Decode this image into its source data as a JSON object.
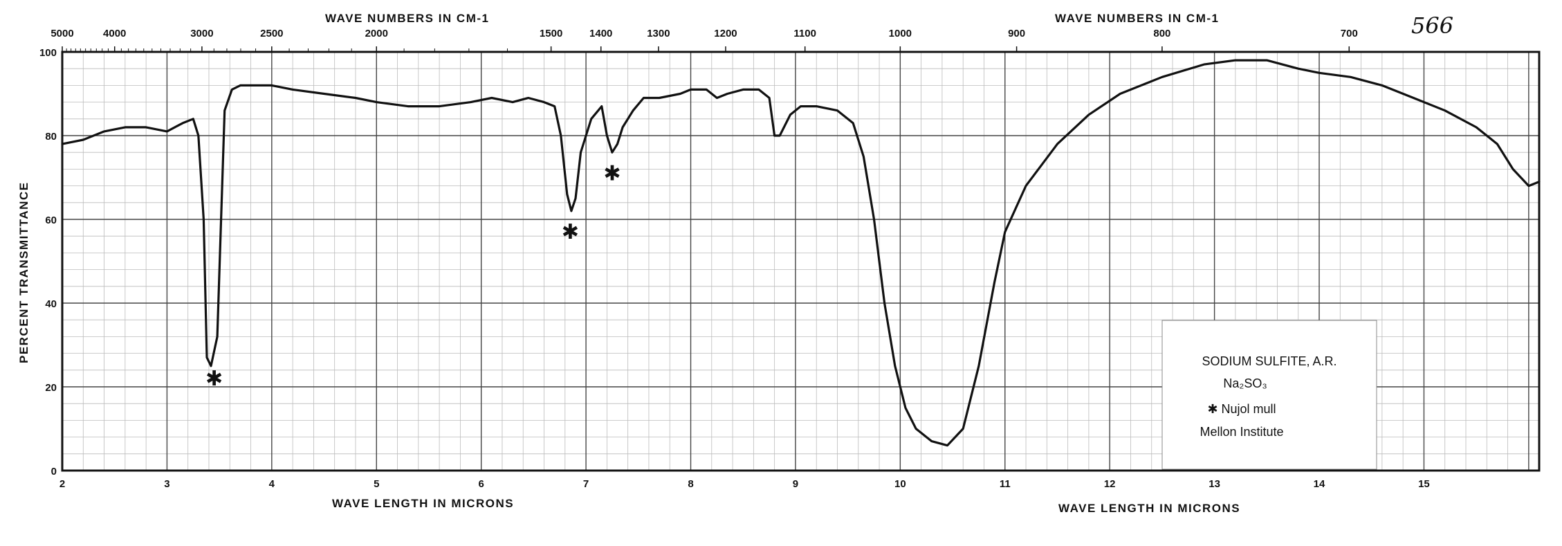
{
  "page_number": "566",
  "top_axis_title_left": "WAVE NUMBERS IN CM-1",
  "top_axis_title_right": "WAVE NUMBERS IN CM-1",
  "bottom_axis_title_left": "WAVE LENGTH IN MICRONS",
  "bottom_axis_title_right": "WAVE LENGTH IN MICRONS",
  "y_axis_title": "PERCENT TRANSMITTANCE",
  "y_ticks": [
    "0",
    "20",
    "40",
    "60",
    "80",
    "100"
  ],
  "x_ticks": [
    "2",
    "3",
    "4",
    "5",
    "6",
    "7",
    "8",
    "9",
    "10",
    "11",
    "12",
    "13",
    "14",
    "15"
  ],
  "top_ticks": [
    "5000",
    "4000",
    "3000",
    "2500",
    "2000",
    "1500",
    "1400",
    "1300",
    "1200",
    "1100",
    "1000",
    "900",
    "800",
    "700"
  ],
  "legend": {
    "compound": "SODIUM SULFITE, A.R.",
    "formula": "Na₂SO₃",
    "note": "✱ Nujol mull",
    "source": "Mellon Institute"
  },
  "chart_data": {
    "type": "line",
    "xlabel": "WAVE LENGTH IN MICRONS",
    "ylabel": "PERCENT TRANSMITTANCE",
    "x2label": "WAVE NUMBERS IN CM-1",
    "xlim": [
      2,
      16.1
    ],
    "ylim": [
      0,
      100
    ],
    "grid": true,
    "series": [
      {
        "x": [
          2.0,
          2.2,
          2.4,
          2.6,
          2.8,
          3.0,
          3.15,
          3.25,
          3.3,
          3.35,
          3.38,
          3.42,
          3.48,
          3.55,
          3.62,
          3.7,
          3.8,
          3.9,
          4.0,
          4.2,
          4.5,
          4.8,
          5.0,
          5.3,
          5.6,
          5.9,
          6.1,
          6.3,
          6.45,
          6.6,
          6.7,
          6.76,
          6.82,
          6.86,
          6.9,
          6.95,
          7.05,
          7.15,
          7.2,
          7.25,
          7.3,
          7.35,
          7.45,
          7.55,
          7.7,
          7.9,
          8.0,
          8.15,
          8.25,
          8.35,
          8.5,
          8.65,
          8.75,
          8.8,
          8.85,
          8.95,
          9.05,
          9.2,
          9.4,
          9.55,
          9.65,
          9.75,
          9.85,
          9.95,
          10.05,
          10.15,
          10.3,
          10.45,
          10.6,
          10.75,
          10.9,
          11.0,
          11.2,
          11.5,
          11.8,
          12.1,
          12.5,
          12.9,
          13.2,
          13.5,
          13.8,
          14.0,
          14.3,
          14.6,
          14.9,
          15.2,
          15.5,
          15.7,
          15.85,
          16.0,
          16.1
        ],
        "y": [
          78,
          79,
          81,
          82,
          82,
          81,
          83,
          84,
          80,
          60,
          27,
          25,
          32,
          86,
          91,
          92,
          92,
          92,
          92,
          91,
          90,
          89,
          88,
          87,
          87,
          88,
          89,
          88,
          89,
          88,
          87,
          80,
          66,
          62,
          65,
          76,
          84,
          87,
          80,
          76,
          78,
          82,
          86,
          89,
          89,
          90,
          91,
          91,
          89,
          90,
          91,
          91,
          89,
          80,
          80,
          85,
          87,
          87,
          86,
          83,
          75,
          60,
          40,
          25,
          15,
          10,
          7,
          6,
          10,
          25,
          45,
          57,
          68,
          78,
          85,
          90,
          94,
          97,
          98,
          98,
          96,
          95,
          94,
          92,
          89,
          86,
          82,
          78,
          72,
          68,
          69
        ]
      }
    ],
    "annotations": [
      {
        "x": 3.45,
        "y": 22,
        "text": "✱"
      },
      {
        "x": 6.85,
        "y": 57,
        "text": "✱"
      },
      {
        "x": 7.25,
        "y": 71,
        "text": "✱"
      }
    ]
  }
}
